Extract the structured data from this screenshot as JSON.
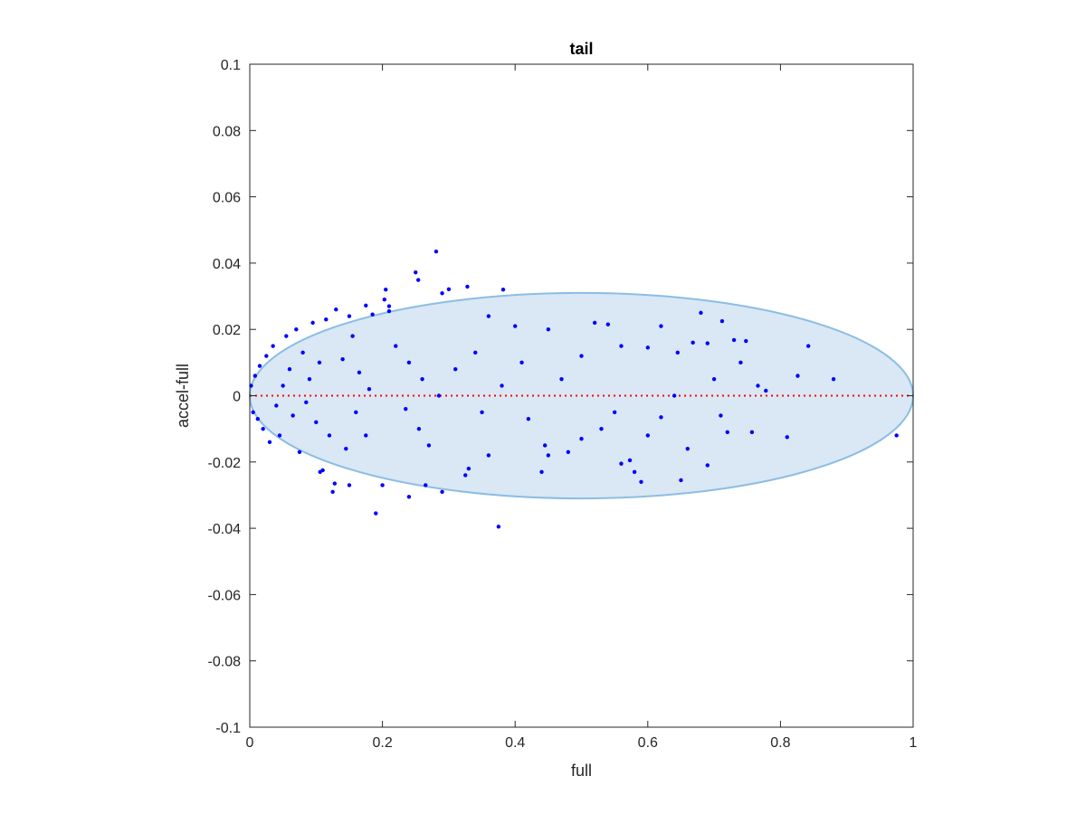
{
  "chart_data": {
    "type": "scatter",
    "title": "tail",
    "xlabel": "full",
    "ylabel": "accel-full",
    "xlim": [
      0,
      1
    ],
    "ylim": [
      -0.1,
      0.1
    ],
    "x_ticks": [
      0,
      0.2,
      0.4,
      0.6,
      0.8,
      1
    ],
    "x_tick_labels": [
      "0",
      "0.2",
      "0.4",
      "0.6",
      "0.8",
      "1"
    ],
    "y_ticks": [
      -0.1,
      -0.08,
      -0.06,
      -0.04,
      -0.02,
      0,
      0.02,
      0.04,
      0.06,
      0.08,
      0.1
    ],
    "y_tick_labels": [
      "-0.1",
      "-0.08",
      "-0.06",
      "-0.04",
      "-0.02",
      "0",
      "0.02",
      "0.04",
      "0.06",
      "0.08",
      "0.1"
    ],
    "grid": false,
    "reference_line": {
      "y": 0,
      "x_range": [
        0,
        1
      ],
      "style": "dotted",
      "color": "#ff0000"
    },
    "ellipse": {
      "center": [
        0.5,
        0
      ],
      "semi_axes": [
        0.5,
        0.031
      ],
      "fill": "#d9e8f4",
      "stroke": "#8cbde3"
    },
    "point_color": "#0000ff",
    "points": [
      [
        0.281,
        0.0435
      ],
      [
        0.25,
        0.0372
      ],
      [
        0.254,
        0.0349
      ],
      [
        0.328,
        0.0329
      ],
      [
        0.3,
        0.0321
      ],
      [
        0.205,
        0.032
      ],
      [
        0.382,
        0.032
      ],
      [
        0.29,
        0.0309
      ],
      [
        0.203,
        0.029
      ],
      [
        0.21,
        0.027
      ],
      [
        0.175,
        0.0272
      ],
      [
        0.36,
        0.024
      ],
      [
        0.68,
        0.025
      ],
      [
        0.13,
        0.026
      ],
      [
        0.62,
        0.021
      ],
      [
        0.712,
        0.0225
      ],
      [
        0.52,
        0.022
      ],
      [
        0.54,
        0.0215
      ],
      [
        0.45,
        0.02
      ],
      [
        0.4,
        0.021
      ],
      [
        0.73,
        0.0168
      ],
      [
        0.748,
        0.0165
      ],
      [
        0.842,
        0.015
      ],
      [
        0.56,
        0.015
      ],
      [
        0.6,
        0.0145
      ],
      [
        0.645,
        0.013
      ],
      [
        0.668,
        0.016
      ],
      [
        0.69,
        0.0158
      ],
      [
        0.74,
        0.01
      ],
      [
        0.826,
        0.006
      ],
      [
        0.88,
        0.005
      ],
      [
        0.766,
        0.003
      ],
      [
        0.778,
        0.0015
      ],
      [
        0.81,
        -0.0125
      ],
      [
        0.975,
        -0.012
      ],
      [
        0.757,
        -0.011
      ],
      [
        0.72,
        -0.011
      ],
      [
        0.69,
        -0.021
      ],
      [
        0.66,
        -0.016
      ],
      [
        0.65,
        -0.0255
      ],
      [
        0.62,
        -0.0065
      ],
      [
        0.59,
        -0.026
      ],
      [
        0.58,
        -0.023
      ],
      [
        0.573,
        -0.0195
      ],
      [
        0.56,
        -0.0205
      ],
      [
        0.6,
        -0.012
      ],
      [
        0.53,
        -0.01
      ],
      [
        0.48,
        -0.017
      ],
      [
        0.45,
        -0.018
      ],
      [
        0.445,
        -0.015
      ],
      [
        0.44,
        -0.023
      ],
      [
        0.375,
        -0.0395
      ],
      [
        0.36,
        -0.018
      ],
      [
        0.33,
        -0.022
      ],
      [
        0.325,
        -0.024
      ],
      [
        0.29,
        -0.029
      ],
      [
        0.265,
        -0.027
      ],
      [
        0.24,
        -0.0305
      ],
      [
        0.2,
        -0.027
      ],
      [
        0.19,
        -0.0355
      ],
      [
        0.15,
        -0.027
      ],
      [
        0.128,
        -0.0265
      ],
      [
        0.125,
        -0.029
      ],
      [
        0.11,
        -0.0225
      ],
      [
        0.106,
        -0.023
      ],
      [
        0.075,
        -0.017
      ],
      [
        0.045,
        -0.012
      ],
      [
        0.03,
        -0.014
      ],
      [
        0.02,
        -0.01
      ],
      [
        0.012,
        -0.007
      ],
      [
        0.005,
        -0.005
      ],
      [
        0.002,
        0.003
      ],
      [
        0.008,
        0.006
      ],
      [
        0.015,
        0.009
      ],
      [
        0.025,
        0.012
      ],
      [
        0.035,
        0.015
      ],
      [
        0.055,
        0.018
      ],
      [
        0.07,
        0.02
      ],
      [
        0.095,
        0.022
      ],
      [
        0.115,
        0.023
      ],
      [
        0.15,
        0.024
      ],
      [
        0.185,
        0.0245
      ],
      [
        0.21,
        0.0255
      ],
      [
        0.155,
        0.018
      ],
      [
        0.14,
        0.011
      ],
      [
        0.165,
        0.007
      ],
      [
        0.18,
        0.002
      ],
      [
        0.16,
        -0.005
      ],
      [
        0.175,
        -0.012
      ],
      [
        0.145,
        -0.016
      ],
      [
        0.12,
        -0.012
      ],
      [
        0.1,
        -0.008
      ],
      [
        0.085,
        -0.002
      ],
      [
        0.09,
        0.005
      ],
      [
        0.105,
        0.01
      ],
      [
        0.06,
        0.008
      ],
      [
        0.05,
        0.003
      ],
      [
        0.04,
        -0.003
      ],
      [
        0.065,
        -0.006
      ],
      [
        0.08,
        0.013
      ],
      [
        0.22,
        0.015
      ],
      [
        0.24,
        0.01
      ],
      [
        0.26,
        0.005
      ],
      [
        0.235,
        -0.004
      ],
      [
        0.255,
        -0.01
      ],
      [
        0.27,
        -0.015
      ],
      [
        0.285,
        0.0
      ],
      [
        0.31,
        0.008
      ],
      [
        0.34,
        0.013
      ],
      [
        0.35,
        -0.005
      ],
      [
        0.38,
        0.003
      ],
      [
        0.41,
        0.01
      ],
      [
        0.42,
        -0.007
      ],
      [
        0.47,
        0.005
      ],
      [
        0.5,
        0.012
      ],
      [
        0.55,
        -0.005
      ],
      [
        0.64,
        0.0
      ],
      [
        0.7,
        0.005
      ],
      [
        0.71,
        -0.006
      ],
      [
        0.5,
        -0.013
      ]
    ]
  }
}
